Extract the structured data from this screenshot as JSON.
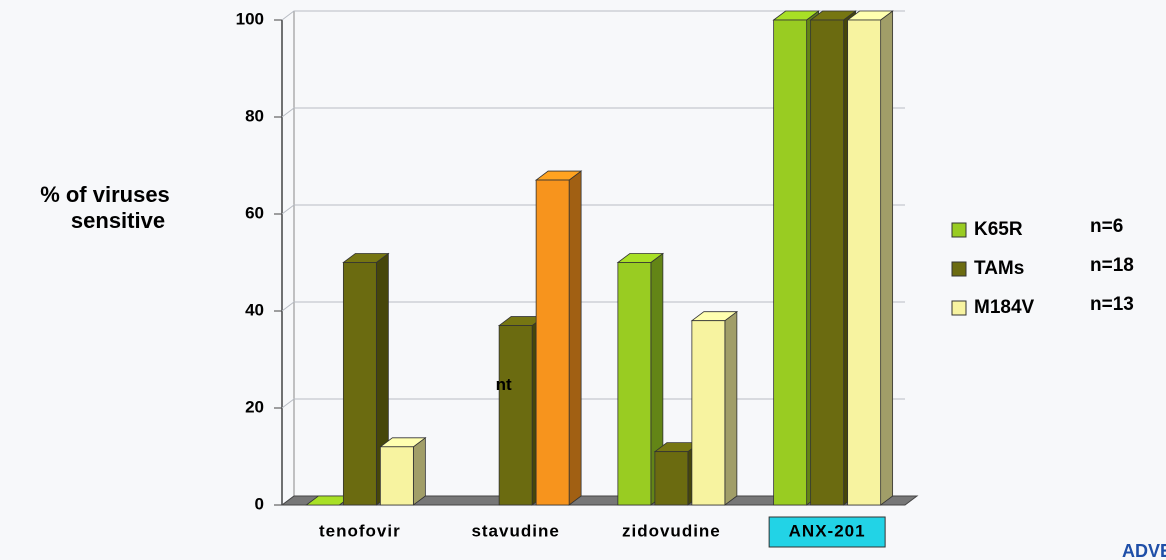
{
  "chart_data": {
    "type": "bar3d",
    "ylabel_lines": [
      "% of viruses",
      "sensitive"
    ],
    "categories": [
      "tenofovir",
      "stavudine",
      "zidovudine",
      "ANX-201"
    ],
    "highlight_category": "ANX-201",
    "series": [
      {
        "name": "K65R",
        "note": "n=6",
        "color": "#99cc22",
        "values": [
          0,
          null,
          50,
          100
        ]
      },
      {
        "name": "TAMs",
        "note": "n=18",
        "color": "#6b6b10",
        "values": [
          50,
          37,
          11,
          100
        ]
      },
      {
        "name": "M184V",
        "note": "n=13",
        "color": "#f7f3a0",
        "values": [
          12,
          67,
          38,
          100
        ],
        "point_colors": [
          null,
          "#f7941d",
          null,
          null
        ]
      }
    ],
    "annotations": [
      {
        "text": "nt"
      }
    ],
    "ylim": [
      0,
      100
    ],
    "yticks": [
      0,
      20,
      40,
      60,
      80,
      100
    ],
    "grid": true,
    "footer": "ADVEN"
  }
}
